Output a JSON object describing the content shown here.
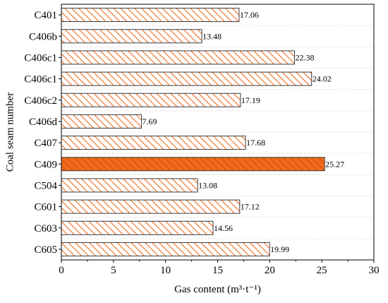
{
  "chart_data": {
    "type": "bar",
    "orientation": "horizontal",
    "categories": [
      "C401",
      "C406b",
      "C406c1",
      "C406c1",
      "C406c2",
      "C406d",
      "C407",
      "C409",
      "C504",
      "C601",
      "C603",
      "C605"
    ],
    "values": [
      17.06,
      13.48,
      22.38,
      24.02,
      17.19,
      7.69,
      17.68,
      25.27,
      13.08,
      17.12,
      14.56,
      19.99
    ],
    "value_labels": [
      "17.06",
      "13.48",
      "22.38",
      "24.02",
      "17.19",
      "7.69",
      "17.68",
      "25.27",
      "13.08",
      "17.12",
      "14.56",
      "19.99"
    ],
    "highlight_index": 7,
    "xlabel": "Gas content (m³·t⁻¹)",
    "ylabel": "Coal seam number",
    "xlim": [
      0,
      30
    ],
    "xticks": [
      0,
      5,
      10,
      15,
      20,
      25,
      30
    ],
    "grid": "horizontal dotted",
    "colors": {
      "hatch": "#f26a1b",
      "highlight_fill": "#f26a1b",
      "bar_edge": "#3a3a3a",
      "grid": "#c8c8c8"
    }
  }
}
